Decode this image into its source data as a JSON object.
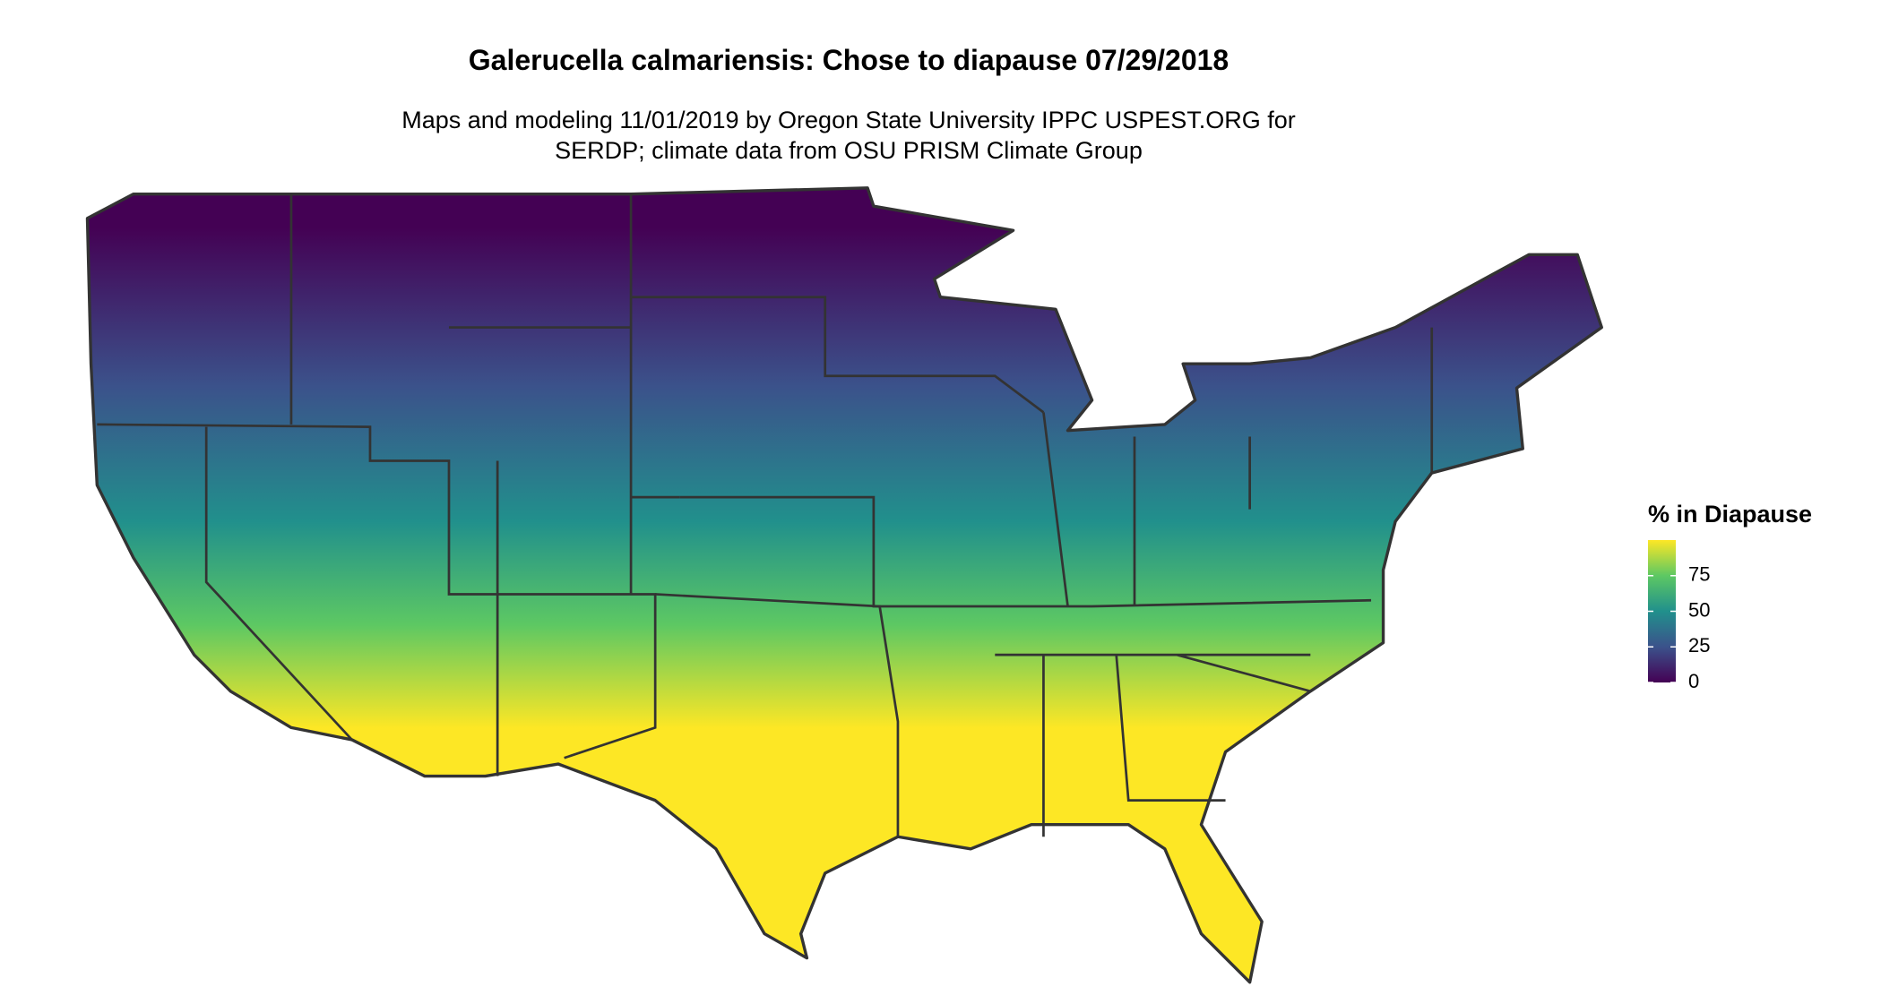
{
  "chart_data": {
    "type": "map",
    "title": "Galerucella calmariensis: Chose to diapause 07/29/2018",
    "subtitle": [
      "Maps and modeling 11/01/2019 by Oregon State University IPPC USPEST.ORG for",
      "SERDP; climate data from OSU PRISM Climate Group"
    ],
    "legend": {
      "title": "% in Diapause",
      "lim": [
        0,
        100
      ],
      "ticks": [
        0,
        25,
        50,
        75
      ],
      "colors": [
        "#440154",
        "#3b528b",
        "#21908c",
        "#5dc863",
        "#fde725"
      ]
    }
  }
}
